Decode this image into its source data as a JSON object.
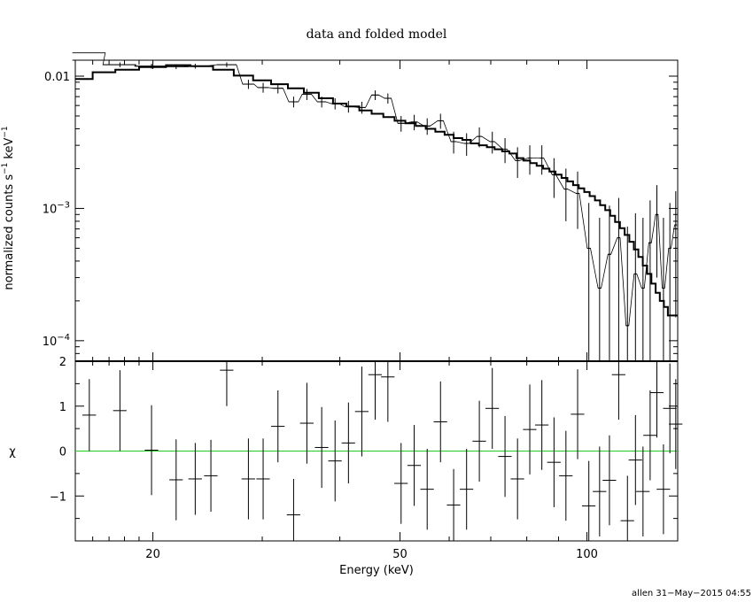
{
  "chart_data": [
    {
      "panel": "spectrum",
      "type": "line",
      "title": "data and folded model",
      "xlabel": "Energy (keV)",
      "ylabel": "normalized counts s",
      "ylabel_unit": "keV",
      "ylabel_exponent": "−1",
      "xscale": "log",
      "yscale": "log",
      "xlim": [
        15,
        140
      ],
      "ylim": [
        7e-05,
        0.0132
      ],
      "x_ticks": [
        20,
        50,
        100
      ],
      "x_tick_labels": [
        "20",
        "50",
        "100"
      ],
      "y_ticks": [
        {
          "value": 0.01,
          "base": "0.01",
          "exp": ""
        },
        {
          "value": 0.001,
          "base": "10",
          "exp": "−3"
        },
        {
          "value": 0.0001,
          "base": "10",
          "exp": "−4"
        }
      ],
      "grid": false,
      "model_bins": [
        [
          15,
          16,
          0.0095
        ],
        [
          16,
          17.4,
          0.0107
        ],
        [
          17.4,
          19,
          0.0112
        ],
        [
          19,
          21,
          0.0117
        ],
        [
          21,
          23,
          0.0121
        ],
        [
          23,
          25,
          0.0119
        ],
        [
          25,
          27,
          0.0112
        ],
        [
          27,
          29,
          0.0101
        ],
        [
          29,
          31,
          0.0093
        ],
        [
          31,
          33,
          0.0087
        ],
        [
          33,
          35,
          0.0081
        ],
        [
          35,
          37,
          0.0075
        ],
        [
          37,
          39,
          0.0068
        ],
        [
          39,
          41,
          0.0062
        ],
        [
          41,
          43,
          0.0059
        ],
        [
          43,
          45,
          0.0055
        ],
        [
          45,
          47,
          0.0052
        ],
        [
          47,
          49,
          0.0049
        ],
        [
          49,
          51,
          0.0046
        ],
        [
          51,
          53,
          0.0044
        ],
        [
          53,
          55,
          0.0042
        ],
        [
          55,
          57,
          0.004
        ],
        [
          57,
          59,
          0.0038
        ],
        [
          59,
          61,
          0.0036
        ],
        [
          61,
          63,
          0.0034
        ],
        [
          63,
          65,
          0.0033
        ],
        [
          65,
          67,
          0.0031
        ],
        [
          67,
          69,
          0.003
        ],
        [
          69,
          71,
          0.0029
        ],
        [
          71,
          73,
          0.0028
        ],
        [
          73,
          75,
          0.0027
        ],
        [
          75,
          77,
          0.0026
        ],
        [
          77,
          79,
          0.0024
        ],
        [
          79,
          81,
          0.0023
        ],
        [
          81,
          83,
          0.0022
        ],
        [
          83,
          85,
          0.0021
        ],
        [
          85,
          87,
          0.002
        ],
        [
          87,
          89,
          0.0019
        ],
        [
          89,
          91,
          0.0018
        ],
        [
          91,
          93,
          0.0017
        ],
        [
          93,
          95,
          0.0016
        ],
        [
          95,
          97,
          0.0015
        ],
        [
          97,
          99,
          0.00142
        ],
        [
          99,
          101,
          0.00133
        ],
        [
          101,
          103,
          0.00124
        ],
        [
          103,
          105,
          0.00115
        ],
        [
          105,
          107,
          0.00106
        ],
        [
          107,
          109,
          0.00097
        ],
        [
          109,
          111,
          0.00088
        ],
        [
          111,
          113,
          0.00079
        ],
        [
          113,
          115,
          0.00071
        ],
        [
          115,
          117,
          0.00063
        ],
        [
          117,
          119,
          0.00056
        ],
        [
          119,
          121,
          0.00049
        ],
        [
          121,
          123,
          0.00043
        ],
        [
          123,
          125,
          0.00037
        ],
        [
          125,
          127,
          0.00032
        ],
        [
          127,
          129,
          0.00027
        ],
        [
          129,
          131,
          0.00023
        ],
        [
          131,
          133,
          0.0002
        ],
        [
          133,
          135,
          0.00018
        ],
        [
          135,
          140,
          0.000155
        ]
      ],
      "data_points": [
        [
          15.8,
          0.015,
          0.8,
          0.0006
        ],
        [
          17.7,
          0.0122,
          0.9,
          0.0005
        ],
        [
          19.9,
          0.0119,
          1.0,
          0.0005
        ],
        [
          21.8,
          0.0118,
          0.9,
          0.0005
        ],
        [
          23.4,
          0.0119,
          0.8,
          0.0005
        ],
        [
          26.3,
          0.0122,
          0.8,
          0.0005
        ],
        [
          28.5,
          0.0087,
          0.5,
          0.0007
        ],
        [
          30.1,
          0.0082,
          0.5,
          0.0007
        ],
        [
          31.8,
          0.0081,
          0.5,
          0.0007
        ],
        [
          33.7,
          0.0064,
          0.5,
          0.0006
        ],
        [
          35.4,
          0.0073,
          0.5,
          0.0007
        ],
        [
          37.4,
          0.0064,
          0.5,
          0.0006
        ],
        [
          39.3,
          0.0062,
          0.5,
          0.0006
        ],
        [
          41.3,
          0.0059,
          0.5,
          0.0006
        ],
        [
          43.4,
          0.0058,
          0.5,
          0.0006
        ],
        [
          45.6,
          0.0072,
          0.5,
          0.0006
        ],
        [
          47.8,
          0.0068,
          0.5,
          0.0006
        ],
        [
          50.2,
          0.0044,
          0.5,
          0.0006
        ],
        [
          52.7,
          0.0045,
          0.5,
          0.0006
        ],
        [
          55.3,
          0.0042,
          0.5,
          0.0006
        ],
        [
          58.1,
          0.0046,
          0.5,
          0.0006
        ],
        [
          61,
          0.0032,
          0.5,
          0.0006
        ],
        [
          64,
          0.0031,
          0.5,
          0.0006
        ],
        [
          67.1,
          0.0035,
          0.5,
          0.0006
        ],
        [
          70.4,
          0.0032,
          0.5,
          0.0006
        ],
        [
          73.8,
          0.0028,
          0.5,
          0.0006
        ],
        [
          77.3,
          0.0023,
          0.5,
          0.0006
        ],
        [
          80.9,
          0.0024,
          0.5,
          0.0006
        ],
        [
          84.6,
          0.0024,
          0.5,
          0.0006
        ],
        [
          88.5,
          0.0018,
          0.5,
          0.0006
        ],
        [
          92.5,
          0.0014,
          0.5,
          0.0006
        ],
        [
          96.6,
          0.0013,
          0.5,
          0.0006
        ],
        [
          100.7,
          0.0005,
          0.5,
          0.0006
        ],
        [
          104.8,
          0.00025,
          0.5,
          0.0006
        ],
        [
          108.7,
          0.00045,
          0.5,
          0.0006
        ],
        [
          112.5,
          0.0006,
          0.5,
          0.0006
        ],
        [
          116.2,
          0.00013,
          0.5,
          0.0006
        ],
        [
          119.7,
          0.00032,
          0.5,
          0.0006
        ],
        [
          123.1,
          0.00025,
          0.5,
          0.0006
        ],
        [
          126.4,
          0.00055,
          0.5,
          0.0006
        ],
        [
          129.6,
          0.0009,
          0.5,
          0.0006
        ],
        [
          132.8,
          0.00025,
          0.5,
          0.0006
        ],
        [
          136,
          0.0005,
          0.5,
          0.0006
        ],
        [
          139,
          0.00075,
          0.5,
          0.0006
        ]
      ]
    },
    {
      "panel": "residuals",
      "type": "scatter",
      "xlabel": "Energy (keV)",
      "ylabel": "χ",
      "xscale": "log",
      "xlim": [
        15,
        140
      ],
      "ylim": [
        -2,
        2
      ],
      "y_ticks": [
        -1,
        0,
        1,
        2
      ],
      "y_tick_labels": [
        "−1",
        "0",
        "1",
        "2"
      ],
      "zero_line_color": "#22cc22",
      "grid": false,
      "residuals": [
        [
          15.8,
          0.8,
          0.8
        ],
        [
          17.7,
          0.9,
          0.9
        ],
        [
          19.9,
          0.02,
          1.0
        ],
        [
          21.8,
          -0.64,
          0.9
        ],
        [
          23.4,
          -0.62,
          0.8
        ],
        [
          24.8,
          -0.55,
          0.8
        ],
        [
          26.3,
          1.8,
          0.8
        ],
        [
          28.5,
          -0.62,
          0.9
        ],
        [
          30.1,
          -0.62,
          0.9
        ],
        [
          31.8,
          0.55,
          0.8
        ],
        [
          33.7,
          -1.42,
          0.8
        ],
        [
          35.4,
          0.62,
          0.9
        ],
        [
          37.4,
          0.08,
          0.9
        ],
        [
          39.3,
          -0.22,
          0.9
        ],
        [
          41.3,
          0.18,
          0.9
        ],
        [
          43.4,
          0.88,
          1.0
        ],
        [
          45.6,
          1.7,
          1.0
        ],
        [
          47.8,
          1.65,
          1.0
        ],
        [
          50.2,
          -0.72,
          0.9
        ],
        [
          52.7,
          -0.32,
          0.9
        ],
        [
          55.3,
          -0.85,
          0.9
        ],
        [
          58.1,
          0.65,
          0.9
        ],
        [
          61,
          -1.2,
          0.8
        ],
        [
          64,
          -0.85,
          0.9
        ],
        [
          67.1,
          0.22,
          0.9
        ],
        [
          70.4,
          0.95,
          0.9
        ],
        [
          73.8,
          -0.12,
          0.9
        ],
        [
          77.3,
          -0.62,
          0.9
        ],
        [
          80.9,
          0.48,
          1.0
        ],
        [
          84.6,
          0.58,
          1.0
        ],
        [
          88.5,
          -0.25,
          1.0
        ],
        [
          92.5,
          -0.55,
          1.0
        ],
        [
          96.6,
          0.82,
          1.0
        ],
        [
          100.7,
          -1.22,
          1.0
        ],
        [
          104.8,
          -0.9,
          1.0
        ],
        [
          108.7,
          -0.65,
          1.0
        ],
        [
          112.5,
          1.7,
          1.0
        ],
        [
          116.2,
          -1.55,
          1.0
        ],
        [
          119.7,
          -0.2,
          1.0
        ],
        [
          123.1,
          -0.9,
          1.0
        ],
        [
          126.4,
          0.35,
          1.0
        ],
        [
          129.6,
          1.3,
          1.0
        ],
        [
          132.8,
          -0.85,
          1.0
        ],
        [
          136,
          0.95,
          1.0
        ],
        [
          139,
          0.6,
          1.0
        ]
      ]
    }
  ],
  "footer": {
    "text": "allen 31−May−2015 04:55"
  }
}
